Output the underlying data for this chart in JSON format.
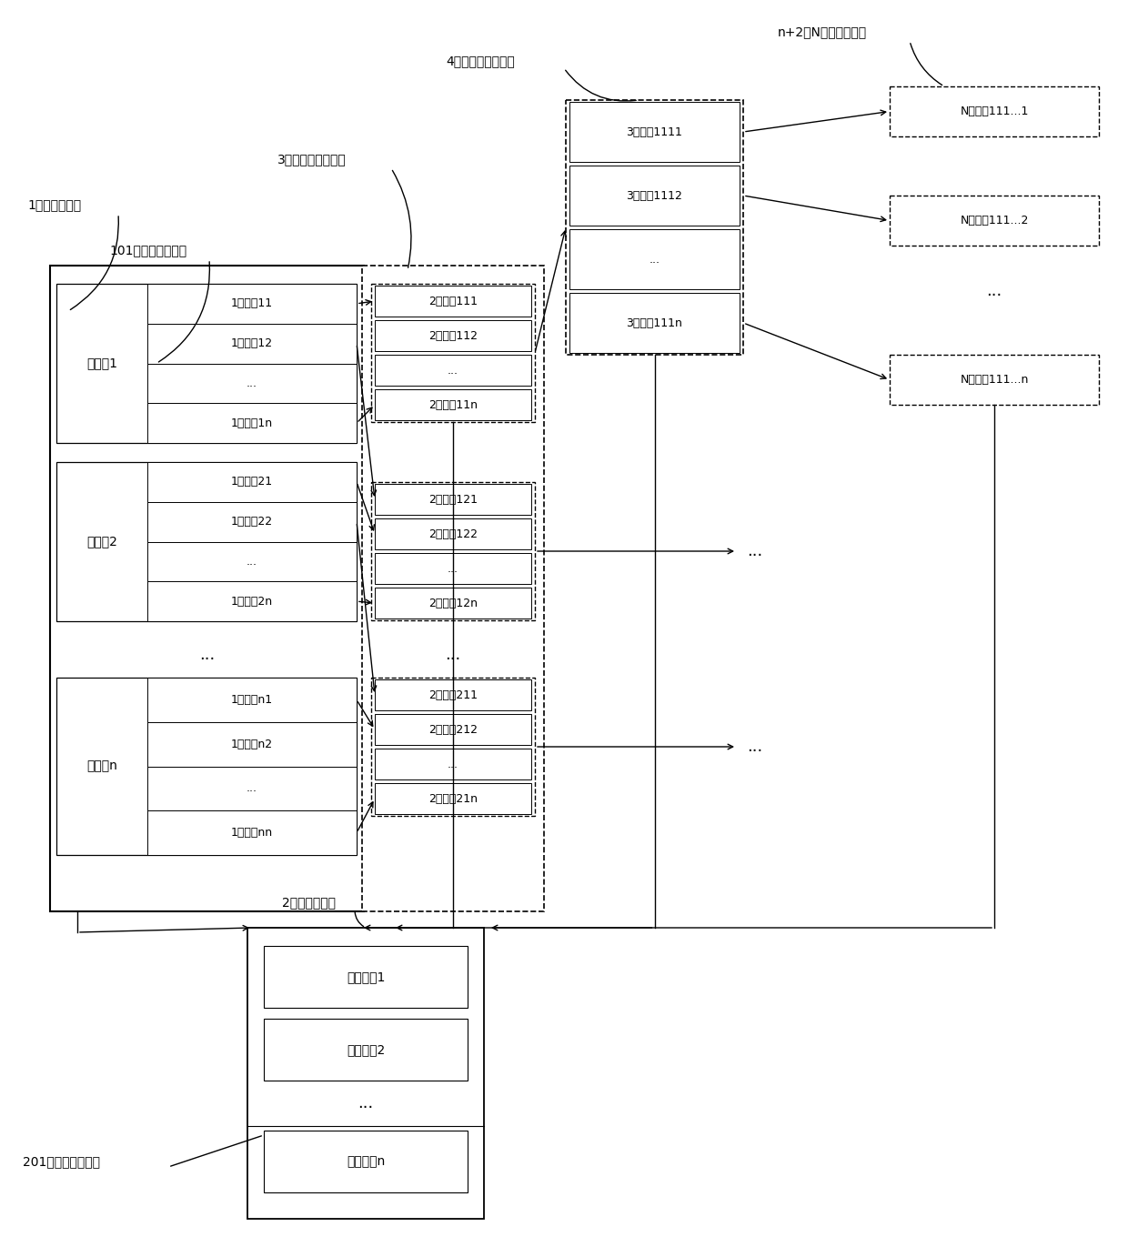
{
  "bg_color": "#ffffff",
  "labels": {
    "gen_label": "1，元组生成器",
    "conv_label": "101，元组转换单元",
    "level1_label": "3，一级元组处理器",
    "level2_label": "4，二级元组处理器",
    "levelN_label": "n+2，N级元组处理器",
    "tracker_label": "2，元组跟踪器",
    "tracker_unit_label": "201，元组跟踪单元"
  },
  "root_groups": [
    {
      "name": "根元组1",
      "items": [
        "1级元组11",
        "1级元组12",
        "...",
        "1级元组1n"
      ]
    },
    {
      "name": "根元组2",
      "items": [
        "1级元组21",
        "1级元组22",
        "...",
        "1级元组2n"
      ]
    },
    {
      "name": "根元组n",
      "items": [
        "1级元组n1",
        "1级元组n2",
        "...",
        "1级元组nn"
      ]
    }
  ],
  "level2_groups": [
    {
      "items": [
        "2级元组111",
        "2级元组112",
        "...",
        "2级元组11n"
      ]
    },
    {
      "items": [
        "2级元组121",
        "2级元组122",
        "...",
        "2级元组12n"
      ]
    },
    {
      "items": [
        "2级元组211",
        "2级元组212",
        "...",
        "2级元组21n"
      ]
    }
  ],
  "level3_items": [
    "3级元组1111",
    "3级元组1112",
    "...",
    "3级元组111n"
  ],
  "levelN_boxes": [
    "N级元组111...1",
    "N级元组111...2",
    "N级元组111...n"
  ],
  "tracker_items": [
    "跟踪记录1",
    "跟踪记录2",
    "...",
    "跟踪记录n"
  ]
}
